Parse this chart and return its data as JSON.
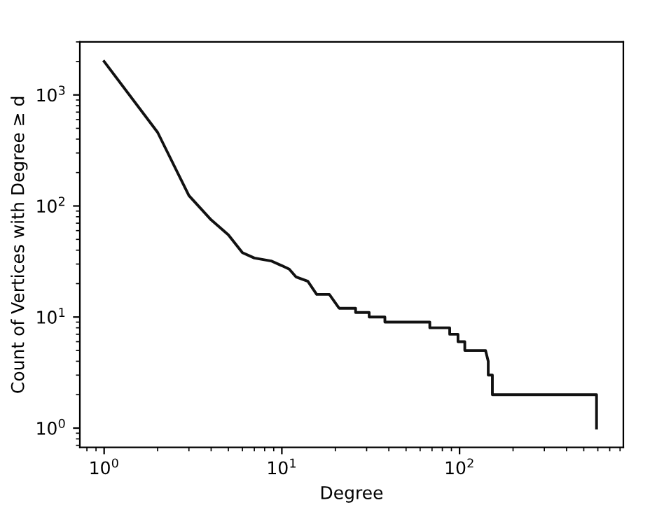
{
  "chart_data": {
    "type": "line",
    "xlabel": "Degree",
    "ylabel": "Count of Vertices with Degree ≥ d",
    "log": "xy",
    "grid": false,
    "legend": false,
    "marker": "none",
    "line_style": "solid",
    "xlim": [
      0.73,
      835
    ],
    "ylim": [
      0.67,
      3000
    ],
    "xticks": [
      {
        "value": 1,
        "label": "10$^{0}$"
      },
      {
        "value": 10,
        "label": "10$^{1}$"
      },
      {
        "value": 100,
        "label": "10$^{2}$"
      }
    ],
    "yticks": [
      {
        "value": 1,
        "label": "10$^{0}$"
      },
      {
        "value": 10,
        "label": "10$^{1}$"
      },
      {
        "value": 100,
        "label": "10$^{2}$"
      },
      {
        "value": 1000,
        "label": "10$^{3}$"
      }
    ],
    "series": [
      {
        "color": "#111111",
        "x": [
          1,
          2,
          3,
          4,
          5,
          6,
          7,
          8.7,
          10,
          11,
          12,
          14,
          15.7,
          18.5,
          21,
          26,
          26,
          31,
          31,
          38,
          38,
          68,
          68,
          88,
          88,
          98,
          98,
          107,
          107,
          140,
          145,
          145,
          153,
          153,
          590,
          590
        ],
        "values": [
          2000,
          460,
          124,
          75,
          55,
          38,
          34,
          32,
          29,
          27,
          23,
          21,
          16,
          16,
          12,
          12,
          11,
          11,
          10,
          10,
          9,
          9,
          8,
          8,
          7,
          7,
          6,
          6,
          5,
          5,
          4,
          3,
          3,
          2,
          2,
          1
        ]
      }
    ]
  }
}
